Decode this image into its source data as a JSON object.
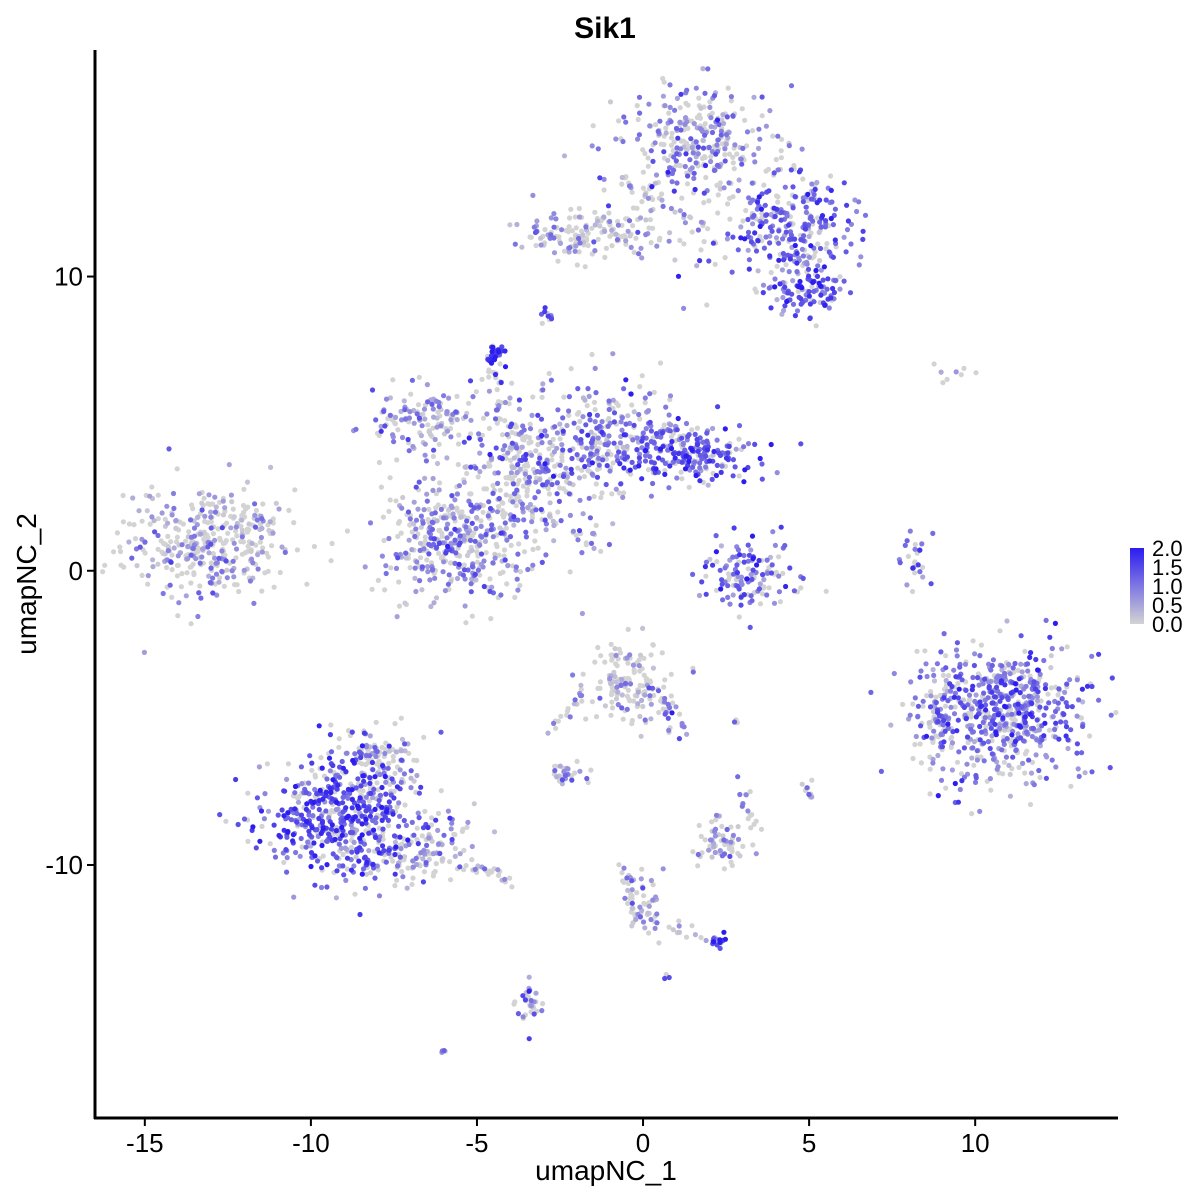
{
  "chart_data": {
    "type": "scatter",
    "title": "Sik1",
    "xlabel": "umapNC_1",
    "ylabel": "umapNC_2",
    "xlim": [
      -16.5,
      14.3
    ],
    "ylim": [
      -18.6,
      17.7
    ],
    "x_ticks": [
      -15,
      -10,
      -5,
      0,
      5,
      10
    ],
    "x_tick_labels": [
      "-15",
      "-10",
      "-5",
      "0",
      "5",
      "10"
    ],
    "y_ticks": [
      -10,
      0,
      10
    ],
    "y_tick_labels": [
      "-10",
      "0",
      "10"
    ],
    "grid": false,
    "color_scale": {
      "low": "#d3d3d3",
      "high": "#2b1cf0",
      "range": [
        0.0,
        2.0
      ],
      "ticks": [
        2.0,
        1.5,
        1.0,
        0.5,
        0.0
      ],
      "tick_labels": [
        "2.0",
        "1.5",
        "1.0",
        "0.5",
        "0.0"
      ],
      "legend_position": "right"
    },
    "clusters": [
      {
        "cx": -13.0,
        "cy": 1.0,
        "sx": 1.3,
        "sy": 0.9,
        "n": 380,
        "expr": 0.35
      },
      {
        "cx": -5.6,
        "cy": 1.0,
        "sx": 1.1,
        "sy": 1.0,
        "n": 400,
        "expr": 0.55
      },
      {
        "cx": -3.5,
        "cy": 3.5,
        "sx": 0.8,
        "sy": 1.0,
        "n": 250,
        "expr": 0.65
      },
      {
        "cx": -6.5,
        "cy": 5.0,
        "sx": 0.9,
        "sy": 0.6,
        "n": 140,
        "expr": 0.5
      },
      {
        "cx": -1.0,
        "cy": 4.5,
        "sx": 1.0,
        "sy": 1.0,
        "n": 220,
        "expr": 0.75
      },
      {
        "cx": 1.5,
        "cy": 4.0,
        "sx": 1.0,
        "sy": 0.5,
        "n": 200,
        "expr": 0.95
      },
      {
        "cx": -4.5,
        "cy": 7.4,
        "sx": 0.15,
        "sy": 0.15,
        "n": 30,
        "expr": 1.3
      },
      {
        "cx": 1.6,
        "cy": 14.5,
        "sx": 1.2,
        "sy": 1.0,
        "n": 320,
        "expr": 0.6
      },
      {
        "cx": 4.3,
        "cy": 11.5,
        "sx": 1.0,
        "sy": 1.0,
        "n": 300,
        "expr": 0.9
      },
      {
        "cx": -1.5,
        "cy": 11.4,
        "sx": 1.2,
        "sy": 0.4,
        "n": 160,
        "expr": 0.35
      },
      {
        "cx": 5.0,
        "cy": 9.5,
        "sx": 0.6,
        "sy": 0.4,
        "n": 80,
        "expr": 1.1
      },
      {
        "cx": -9.0,
        "cy": -8.3,
        "sx": 1.2,
        "sy": 1.1,
        "n": 560,
        "expr": 1.0
      },
      {
        "cx": -6.8,
        "cy": -9.5,
        "sx": 1.0,
        "sy": 0.5,
        "n": 120,
        "expr": 0.25
      },
      {
        "cx": -8.0,
        "cy": -6.5,
        "sx": 0.6,
        "sy": 0.6,
        "n": 100,
        "expr": 0.3
      },
      {
        "cx": 10.8,
        "cy": -4.8,
        "sx": 1.3,
        "sy": 1.1,
        "n": 620,
        "expr": 0.8
      },
      {
        "cx": 8.9,
        "cy": -5.2,
        "sx": 0.25,
        "sy": 0.8,
        "n": 60,
        "expr": 0.6
      },
      {
        "cx": -0.4,
        "cy": -3.8,
        "sx": 0.6,
        "sy": 0.7,
        "n": 150,
        "expr": 0.2
      },
      {
        "cx": 3.3,
        "cy": -0.2,
        "sx": 0.7,
        "sy": 0.6,
        "n": 130,
        "expr": 0.9
      },
      {
        "cx": 2.3,
        "cy": -9.3,
        "sx": 0.4,
        "sy": 0.4,
        "n": 60,
        "expr": 0.3
      },
      {
        "cx": -2.3,
        "cy": -6.9,
        "sx": 0.3,
        "sy": 0.2,
        "n": 30,
        "expr": 0.4
      },
      {
        "cx": -3.4,
        "cy": -14.7,
        "sx": 0.2,
        "sy": 0.4,
        "n": 30,
        "expr": 0.5
      },
      {
        "cx": 0.0,
        "cy": -11.3,
        "sx": 0.3,
        "sy": 0.6,
        "n": 40,
        "expr": 0.4
      },
      {
        "cx": 2.3,
        "cy": -12.6,
        "sx": 0.15,
        "sy": 0.15,
        "n": 12,
        "expr": 1.4
      },
      {
        "cx": 8.2,
        "cy": 0.4,
        "sx": 0.2,
        "sy": 0.5,
        "n": 25,
        "expr": 0.7
      },
      {
        "cx": 5.0,
        "cy": -7.4,
        "sx": 0.1,
        "sy": 0.2,
        "n": 10,
        "expr": 0.5
      },
      {
        "cx": -2.9,
        "cy": 8.6,
        "sx": 0.12,
        "sy": 0.12,
        "n": 10,
        "expr": 0.8
      },
      {
        "cx": 9.3,
        "cy": 6.7,
        "sx": 0.5,
        "sy": 0.15,
        "n": 8,
        "expr": 0.3
      },
      {
        "cx": -6.0,
        "cy": -16.3,
        "sx": 0.05,
        "sy": 0.05,
        "n": 4,
        "expr": 0.7
      },
      {
        "cx": 0.7,
        "cy": -13.8,
        "sx": 0.05,
        "sy": 0.05,
        "n": 3,
        "expr": 1.2
      },
      {
        "cx": 2.8,
        "cy": -5.1,
        "sx": 0.05,
        "sy": 0.05,
        "n": 3,
        "expr": 0.5
      }
    ],
    "streaks": [
      {
        "from": [
          -4.0,
          2.5
        ],
        "to": [
          -1.1,
          0.7
        ],
        "n": 40,
        "expr": 0.6
      },
      {
        "from": [
          -4.0,
          4.0
        ],
        "to": [
          -4.6,
          7.2
        ],
        "n": 30,
        "expr": 0.6
      },
      {
        "from": [
          -2.5,
          3.0
        ],
        "to": [
          1.0,
          5.0
        ],
        "n": 40,
        "expr": 0.6
      },
      {
        "from": [
          -0.8,
          13.5
        ],
        "to": [
          2.0,
          11.5
        ],
        "n": 30,
        "expr": 0.4
      },
      {
        "from": [
          -1.7,
          -4.0
        ],
        "to": [
          -2.8,
          -5.5
        ],
        "n": 20,
        "expr": 0.4
      },
      {
        "from": [
          0.3,
          -4.0
        ],
        "to": [
          1.3,
          -5.6
        ],
        "n": 25,
        "expr": 0.7
      },
      {
        "from": [
          -5.0,
          -10.0
        ],
        "to": [
          -3.9,
          -10.6
        ],
        "n": 20,
        "expr": 0.3
      },
      {
        "from": [
          -0.6,
          -9.8
        ],
        "to": [
          -0.3,
          -11.8
        ],
        "n": 20,
        "expr": 0.4
      },
      {
        "from": [
          0.2,
          -11.8
        ],
        "to": [
          2.3,
          -12.6
        ],
        "n": 20,
        "expr": 0.3
      },
      {
        "from": [
          2.8,
          -7.0
        ],
        "to": [
          3.5,
          -8.8
        ],
        "n": 15,
        "expr": 0.3
      }
    ]
  }
}
